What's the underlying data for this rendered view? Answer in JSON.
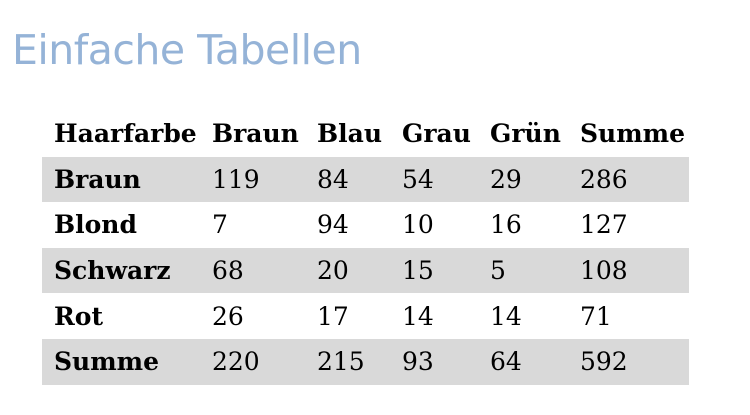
{
  "title": "Einfache Tabellen",
  "table": {
    "header": [
      "Haarfarbe",
      "Braun",
      "Blau",
      "Grau",
      "Grün",
      "Summe"
    ],
    "rows": [
      {
        "label": "Braun",
        "cells": [
          "119",
          "84",
          "54",
          "29",
          "286"
        ]
      },
      {
        "label": "Blond",
        "cells": [
          "7",
          "94",
          "10",
          "16",
          "127"
        ]
      },
      {
        "label": "Schwarz",
        "cells": [
          "68",
          "20",
          "15",
          "5",
          "108"
        ]
      },
      {
        "label": "Rot",
        "cells": [
          "26",
          "17",
          "14",
          "14",
          "71"
        ]
      },
      {
        "label": "Summe",
        "cells": [
          "220",
          "215",
          "93",
          "64",
          "592"
        ]
      }
    ]
  },
  "colors": {
    "title": "#95b3d7",
    "row_shading": "#d9d9d9",
    "text": "#000000"
  }
}
